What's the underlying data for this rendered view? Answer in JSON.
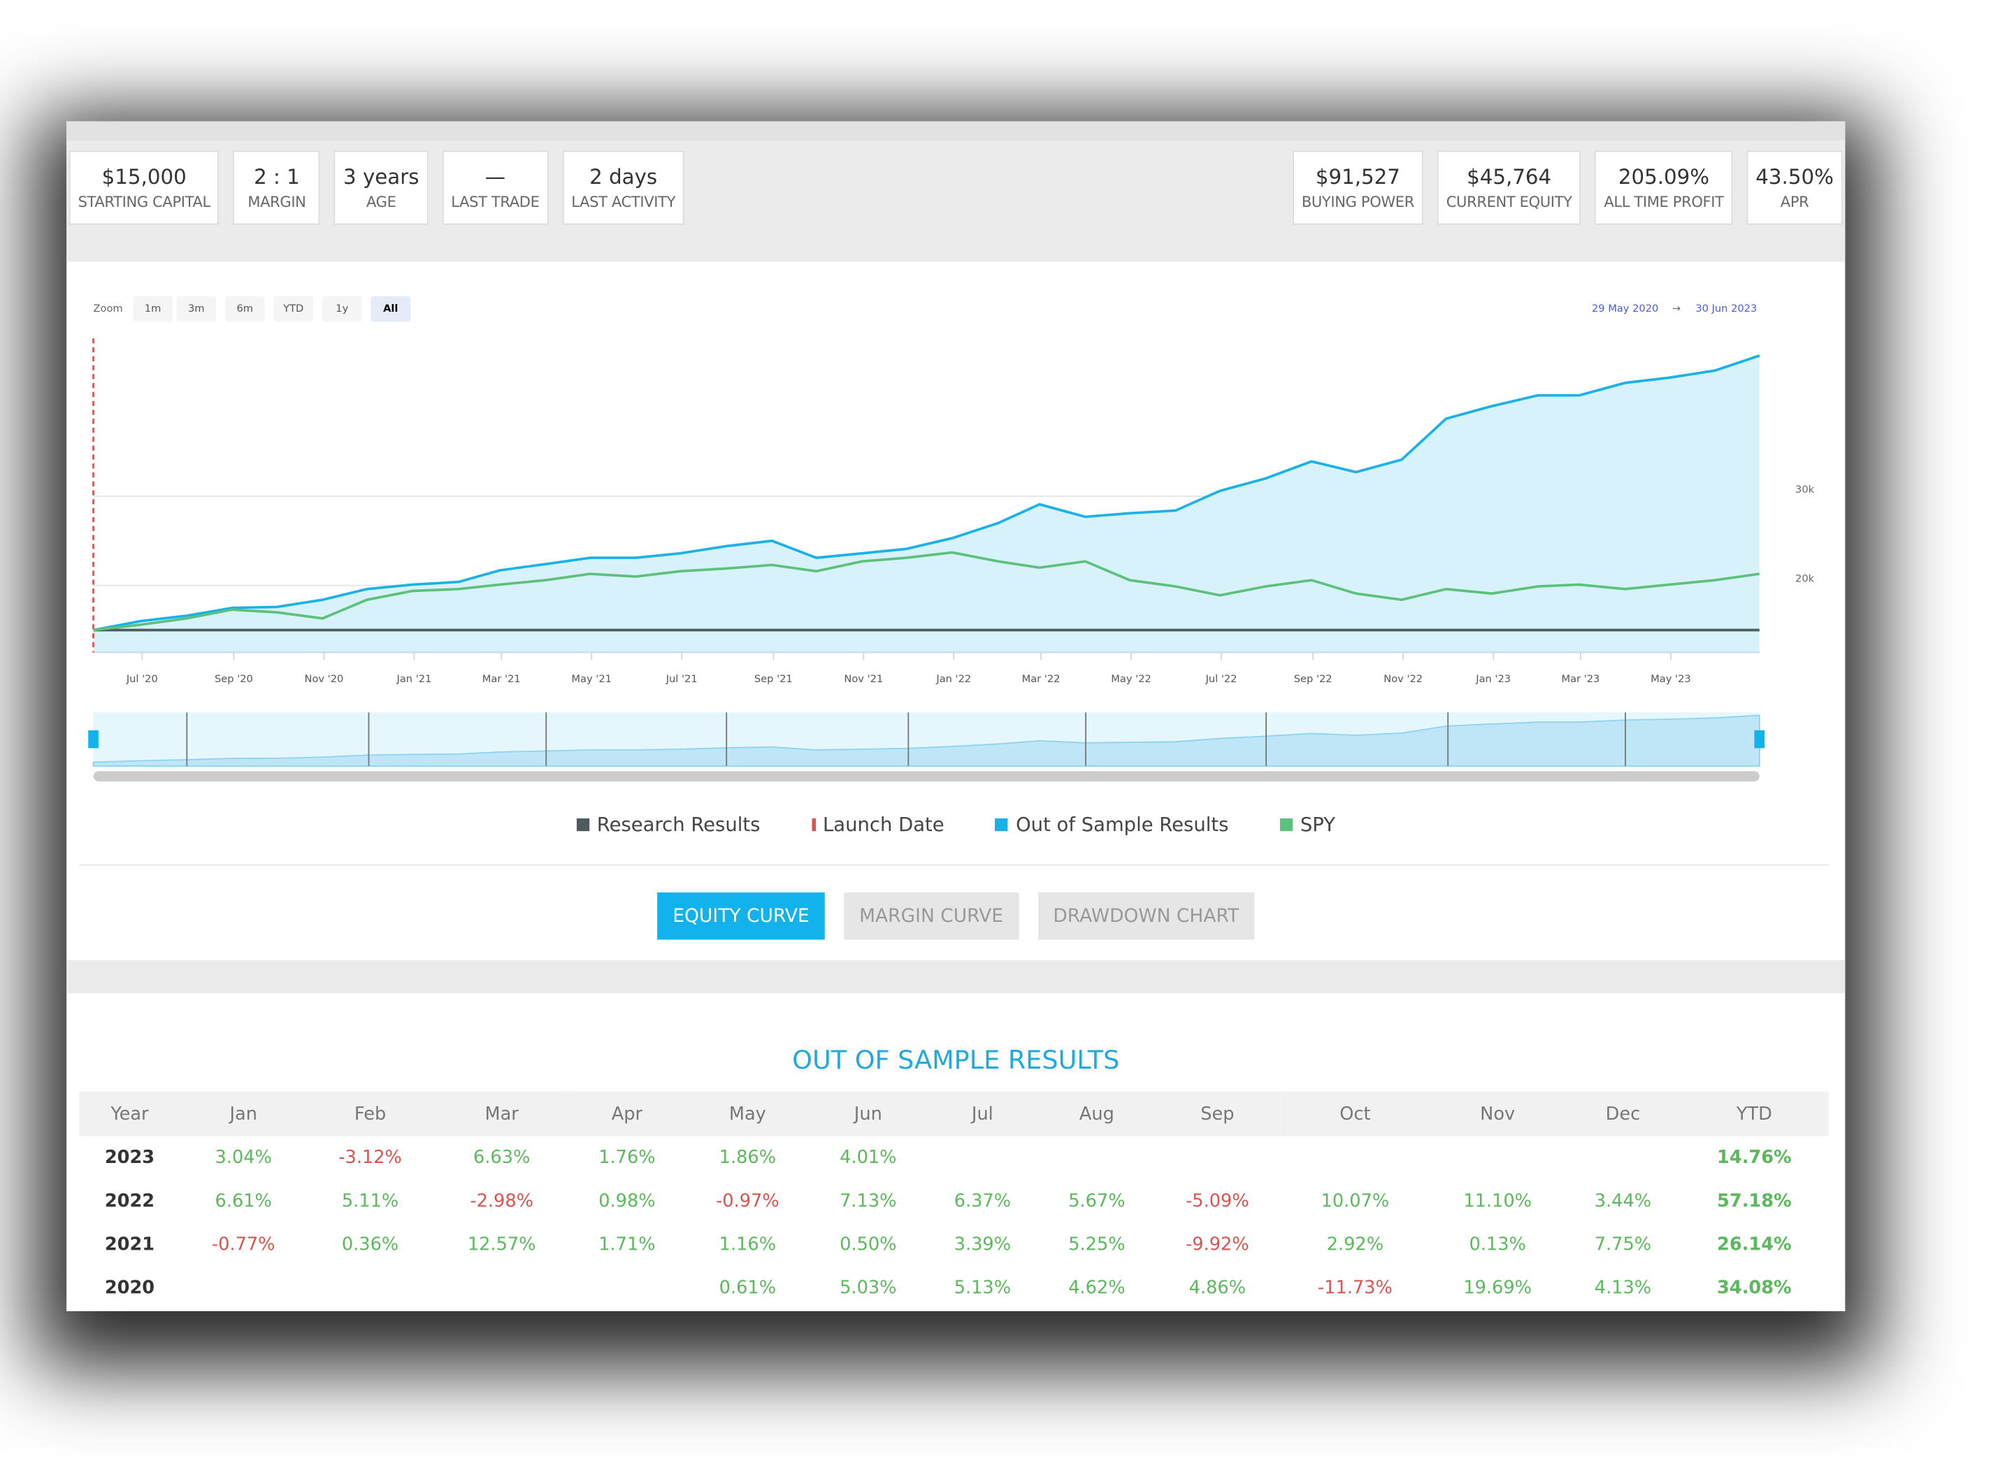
{
  "stats_left": [
    {
      "value": "$15,000",
      "label": "STARTING CAPITAL"
    },
    {
      "value": "2 : 1",
      "label": "MARGIN"
    },
    {
      "value": "3 years",
      "label": "AGE"
    },
    {
      "value": "—",
      "label": "LAST TRADE"
    },
    {
      "value": "2 days",
      "label": "LAST ACTIVITY"
    }
  ],
  "stats_right": [
    {
      "value": "$91,527",
      "label": "BUYING POWER"
    },
    {
      "value": "$45,764",
      "label": "CURRENT EQUITY"
    },
    {
      "value": "205.09%",
      "label": "ALL TIME PROFIT"
    },
    {
      "value": "43.50%",
      "label": "APR"
    }
  ],
  "zoom": {
    "label": "Zoom",
    "buttons": [
      "1m",
      "3m",
      "6m",
      "YTD",
      "1y",
      "All"
    ],
    "active": "All"
  },
  "range": {
    "from": "29 May 2020",
    "arrow": "→",
    "to": "30 Jun 2023"
  },
  "chart_data": {
    "type": "line",
    "x": [
      "2020-05-29",
      "2020-06-30",
      "2020-07-31",
      "2020-08-31",
      "2020-09-30",
      "2020-10-31",
      "2020-11-30",
      "2020-12-31",
      "2021-01-31",
      "2021-02-28",
      "2021-03-31",
      "2021-04-30",
      "2021-05-31",
      "2021-06-30",
      "2021-07-31",
      "2021-08-31",
      "2021-09-30",
      "2021-10-31",
      "2021-11-30",
      "2021-12-31",
      "2022-01-31",
      "2022-02-28",
      "2022-03-31",
      "2022-04-30",
      "2022-05-31",
      "2022-06-30",
      "2022-07-31",
      "2022-08-31",
      "2022-09-30",
      "2022-10-31",
      "2022-11-30",
      "2022-12-31",
      "2023-01-31",
      "2023-02-28",
      "2023-03-31",
      "2023-04-30",
      "2023-05-31",
      "2023-06-30"
    ],
    "series": [
      {
        "name": "Research Results",
        "color": "#4d5a5e",
        "values": [
          15000,
          15000,
          15000,
          15000,
          15000,
          15000,
          15000,
          15000,
          15000,
          15000,
          15000,
          15000,
          15000,
          15000,
          15000,
          15000,
          15000,
          15000,
          15000,
          15000,
          15000,
          15000,
          15000,
          15000,
          15000,
          15000,
          15000,
          15000,
          15000,
          15000,
          15000,
          15000,
          15000,
          15000,
          15000,
          15000,
          15000,
          15000
        ]
      },
      {
        "name": "Launch Date",
        "color": "#d9534f",
        "dashed": true
      },
      {
        "name": "Out of Sample Results",
        "color": "#1ab0e8",
        "area_color": "#d8f2fc",
        "values": [
          15000,
          16000,
          16600,
          17500,
          17600,
          18400,
          19600,
          20100,
          20400,
          21700,
          22400,
          23100,
          23100,
          23600,
          24400,
          25000,
          23100,
          23600,
          24100,
          25300,
          27000,
          29100,
          27700,
          28100,
          28400,
          30600,
          32000,
          33900,
          32700,
          34100,
          38700,
          40100,
          41300,
          41300,
          42700,
          43300,
          44100,
          45764
        ]
      },
      {
        "name": "SPY",
        "color": "#5cc17b",
        "values": [
          15000,
          15600,
          16300,
          17300,
          17000,
          16300,
          18400,
          19400,
          19600,
          20100,
          20600,
          21300,
          21000,
          21600,
          21900,
          22300,
          21600,
          22700,
          23100,
          23700,
          22700,
          22000,
          22700,
          20600,
          19900,
          18900,
          19900,
          20600,
          19100,
          18400,
          19600,
          19100,
          19900,
          20100,
          19600,
          20100,
          20600,
          21300
        ]
      }
    ],
    "launch_date": "2020-05-29",
    "xlim": [
      "2020-05-29",
      "2023-06-30"
    ],
    "xticks": [
      {
        "value": "2020-07-01",
        "label": "Jul '20"
      },
      {
        "value": "2020-09-01",
        "label": "Sep '20"
      },
      {
        "value": "2020-11-01",
        "label": "Nov '20"
      },
      {
        "value": "2021-01-01",
        "label": "Jan '21"
      },
      {
        "value": "2021-03-01",
        "label": "Mar '21"
      },
      {
        "value": "2021-05-01",
        "label": "May '21"
      },
      {
        "value": "2021-07-01",
        "label": "Jul '21"
      },
      {
        "value": "2021-09-01",
        "label": "Sep '21"
      },
      {
        "value": "2021-11-01",
        "label": "Nov '21"
      },
      {
        "value": "2022-01-01",
        "label": "Jan '22"
      },
      {
        "value": "2022-03-01",
        "label": "Mar '22"
      },
      {
        "value": "2022-05-01",
        "label": "May '22"
      },
      {
        "value": "2022-07-01",
        "label": "Jul '22"
      },
      {
        "value": "2022-09-01",
        "label": "Sep '22"
      },
      {
        "value": "2022-11-01",
        "label": "Nov '22"
      },
      {
        "value": "2023-01-01",
        "label": "Jan '23"
      },
      {
        "value": "2023-03-01",
        "label": "Mar '23"
      },
      {
        "value": "2023-05-01",
        "label": "May '23"
      }
    ],
    "ylim": [
      12500,
      47700
    ],
    "yticks": [
      {
        "value": 30000,
        "label": "30k"
      },
      {
        "value": 20000,
        "label": "20k"
      }
    ],
    "grid": true
  },
  "buttons": {
    "items": [
      "EQUITY CURVE",
      "MARGIN CURVE",
      "DRAWDOWN CHART"
    ],
    "active": "EQUITY CURVE"
  },
  "table": {
    "title": "OUT OF SAMPLE RESULTS",
    "header": [
      "Year",
      "Jan",
      "Feb",
      "Mar",
      "Apr",
      "May",
      "Jun",
      "Jul",
      "Aug",
      "Sep",
      "Oct",
      "Nov",
      "Dec",
      "YTD"
    ],
    "rows": [
      [
        "2023",
        "3.04%",
        "-3.12%",
        "6.63%",
        "1.76%",
        "1.86%",
        "4.01%",
        null,
        null,
        null,
        null,
        null,
        null,
        "14.76%"
      ],
      [
        "2022",
        "6.61%",
        "5.11%",
        "-2.98%",
        "0.98%",
        "-0.97%",
        "7.13%",
        "6.37%",
        "5.67%",
        "-5.09%",
        "10.07%",
        "11.10%",
        "3.44%",
        "57.18%"
      ],
      [
        "2021",
        "-0.77%",
        "0.36%",
        "12.57%",
        "1.71%",
        "1.16%",
        "0.50%",
        "3.39%",
        "5.25%",
        "-9.92%",
        "2.92%",
        "0.13%",
        "7.75%",
        "26.14%"
      ],
      [
        "2020",
        null,
        null,
        null,
        null,
        "0.61%",
        "5.03%",
        "5.13%",
        "4.62%",
        "4.86%",
        "-11.73%",
        "19.69%",
        "4.13%",
        "34.08%"
      ]
    ],
    "positive_color": "#5cb85c",
    "negative_color": "#d9534f"
  }
}
